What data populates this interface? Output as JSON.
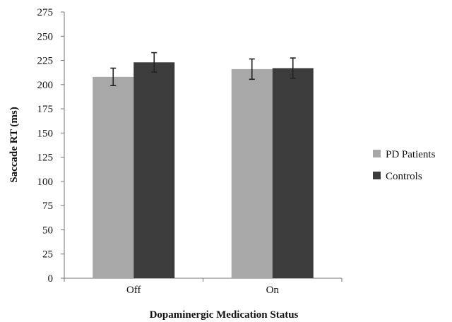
{
  "chart_data": {
    "type": "bar",
    "title": "",
    "xlabel": "Dopaminergic Medication Status",
    "ylabel": "Saccade RT (ms)",
    "categories": [
      "Off",
      "On"
    ],
    "ylim": [
      0,
      275
    ],
    "yticks": [
      0,
      25,
      50,
      75,
      100,
      125,
      150,
      175,
      200,
      225,
      250,
      275
    ],
    "grid": false,
    "legend_position": "right",
    "series": [
      {
        "name": "PD Patients",
        "color": "#a8a8a8",
        "values": [
          208,
          216
        ],
        "errors": [
          9,
          10.5
        ]
      },
      {
        "name": "Controls",
        "color": "#3c3c3c",
        "values": [
          223,
          217
        ],
        "errors": [
          10,
          10.5
        ]
      }
    ]
  }
}
